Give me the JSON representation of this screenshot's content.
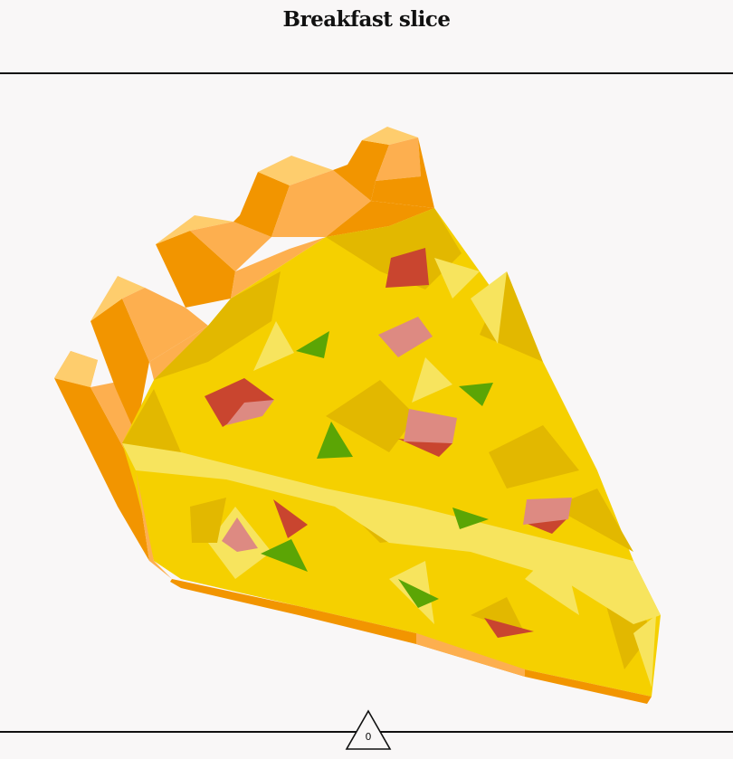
{
  "page": {
    "title": "Breakfast slice"
  },
  "illustration": {
    "subject": "low-poly slice of breakfast pizza",
    "colors": {
      "crust_dark": "#f29500",
      "crust_mid": "#fdaf4f",
      "crust_light": "#fecd6d",
      "egg": "#f5d000",
      "egg_dark": "#e2b800",
      "egg_light": "#f7e45e",
      "tomato": "#c9452f",
      "ham": "#dd8a82",
      "herb": "#5ba505"
    }
  },
  "footer": {
    "counter_value": "0",
    "counter_icon": "triangle-icon"
  }
}
